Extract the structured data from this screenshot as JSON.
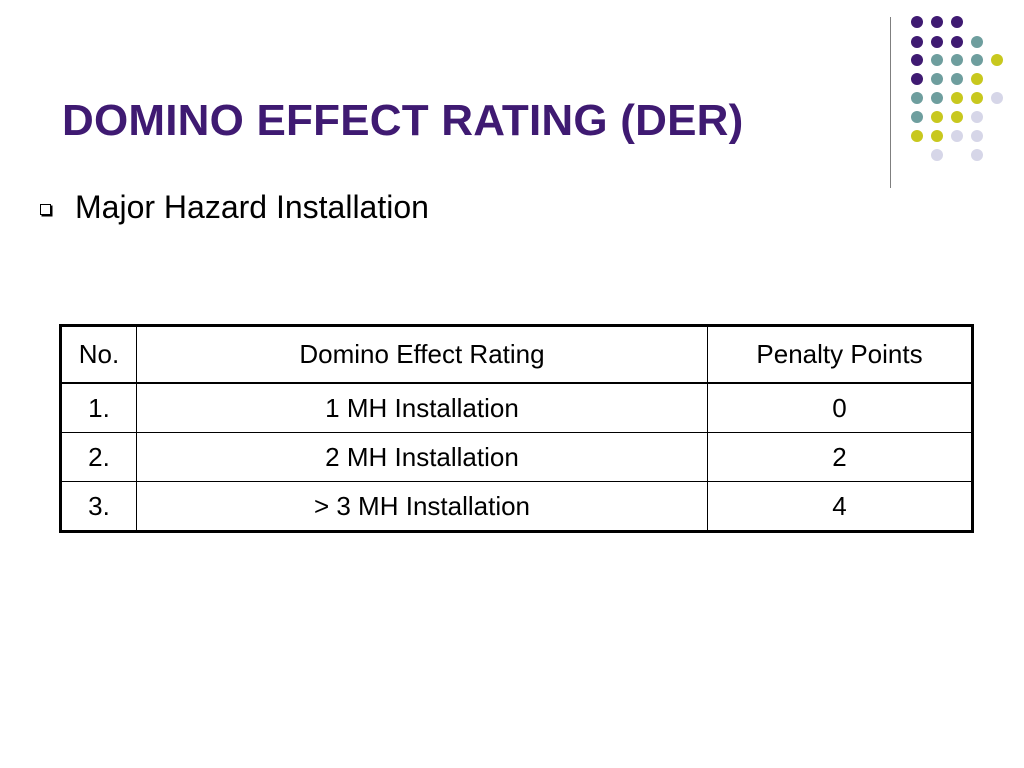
{
  "slide": {
    "title": "DOMINO EFFECT RATING (DER)",
    "bullet": "Major Hazard Installation"
  },
  "table": {
    "headers": [
      "No.",
      "Domino Effect Rating",
      "Penalty Points"
    ],
    "rows": [
      [
        "1.",
        "1 MH Installation",
        "0"
      ],
      [
        "2.",
        "2 MH Installation",
        "2"
      ],
      [
        "3.",
        "> 3 MH Installation",
        "4"
      ]
    ]
  },
  "colors": {
    "title": "#3f1a72",
    "dot_purple": "#3f1a72",
    "dot_teal": "#6e9e9e",
    "dot_yellow": "#c8c81e",
    "dot_lavender": "#d6d6e8"
  }
}
